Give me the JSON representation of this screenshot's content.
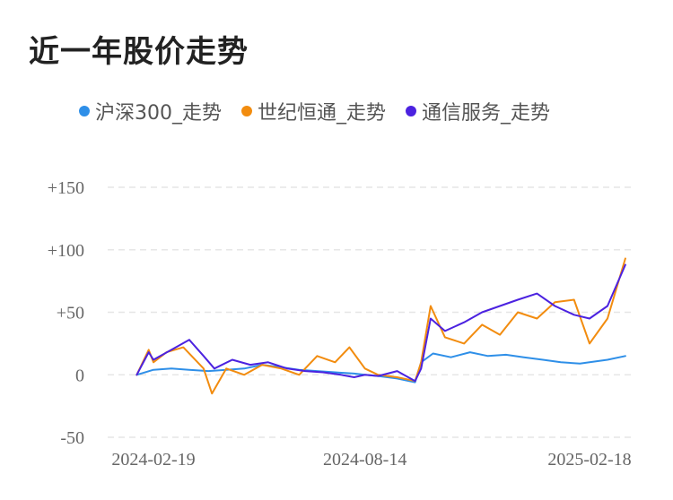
{
  "title": "近一年股价走势",
  "chart_data": {
    "type": "line",
    "title": "近一年股价走势",
    "x_ticks": [
      "2024-02-19",
      "2024-08-14",
      "2025-02-18"
    ],
    "y_ticks": [
      -50,
      0,
      50,
      100,
      150
    ],
    "y_tick_labels": [
      "-50",
      "0",
      "+50",
      "+100",
      "+150"
    ],
    "ylim": [
      -50,
      150
    ],
    "grid": true,
    "legend_position": "top",
    "series": [
      {
        "name": "沪深300_走势",
        "color": "#2e8fe8",
        "x": [
          "2024-02-05",
          "2024-02-19",
          "2024-03-05",
          "2024-03-20",
          "2024-04-05",
          "2024-04-20",
          "2024-05-05",
          "2024-05-20",
          "2024-06-05",
          "2024-06-20",
          "2024-07-05",
          "2024-07-20",
          "2024-08-05",
          "2024-08-14",
          "2024-08-25",
          "2024-09-10",
          "2024-09-25",
          "2024-09-30",
          "2024-10-10",
          "2024-10-25",
          "2024-11-10",
          "2024-11-25",
          "2024-12-10",
          "2024-12-25",
          "2025-01-10",
          "2025-01-25",
          "2025-02-10",
          "2025-02-18",
          "2025-03-05",
          "2025-03-20"
        ],
        "values": [
          0,
          4,
          5,
          4,
          3,
          4,
          5,
          8,
          6,
          4,
          3,
          2,
          1,
          0,
          -1,
          -3,
          -6,
          10,
          17,
          14,
          18,
          15,
          16,
          14,
          12,
          10,
          9,
          10,
          12,
          15
        ]
      },
      {
        "name": "世纪恒通_走势",
        "color": "#f28c0f",
        "x": [
          "2024-02-05",
          "2024-02-15",
          "2024-02-19",
          "2024-03-01",
          "2024-03-15",
          "2024-04-01",
          "2024-04-08",
          "2024-04-20",
          "2024-05-05",
          "2024-05-20",
          "2024-06-05",
          "2024-06-20",
          "2024-07-05",
          "2024-07-20",
          "2024-08-01",
          "2024-08-14",
          "2024-08-25",
          "2024-09-10",
          "2024-09-25",
          "2024-09-30",
          "2024-10-08",
          "2024-10-20",
          "2024-11-05",
          "2024-11-20",
          "2024-12-05",
          "2024-12-20",
          "2025-01-05",
          "2025-01-20",
          "2025-02-05",
          "2025-02-18",
          "2025-03-05",
          "2025-03-20"
        ],
        "values": [
          0,
          20,
          10,
          18,
          22,
          5,
          -15,
          5,
          0,
          8,
          5,
          0,
          15,
          10,
          22,
          5,
          0,
          -2,
          -5,
          10,
          55,
          30,
          25,
          40,
          32,
          50,
          45,
          58,
          60,
          25,
          45,
          93
        ]
      },
      {
        "name": "通信服务_走势",
        "color": "#4b22e0",
        "x": [
          "2024-02-05",
          "2024-02-15",
          "2024-02-19",
          "2024-03-05",
          "2024-03-20",
          "2024-04-01",
          "2024-04-10",
          "2024-04-25",
          "2024-05-10",
          "2024-05-25",
          "2024-06-10",
          "2024-06-25",
          "2024-07-10",
          "2024-07-25",
          "2024-08-05",
          "2024-08-14",
          "2024-08-25",
          "2024-09-10",
          "2024-09-25",
          "2024-09-30",
          "2024-10-08",
          "2024-10-20",
          "2024-11-05",
          "2024-11-20",
          "2024-12-05",
          "2024-12-20",
          "2025-01-05",
          "2025-01-20",
          "2025-02-05",
          "2025-02-18",
          "2025-03-05",
          "2025-03-20"
        ],
        "values": [
          0,
          18,
          12,
          20,
          28,
          15,
          5,
          12,
          8,
          10,
          5,
          3,
          2,
          0,
          -2,
          0,
          -1,
          3,
          -5,
          5,
          45,
          35,
          42,
          50,
          55,
          60,
          65,
          55,
          48,
          45,
          55,
          88
        ]
      }
    ]
  }
}
